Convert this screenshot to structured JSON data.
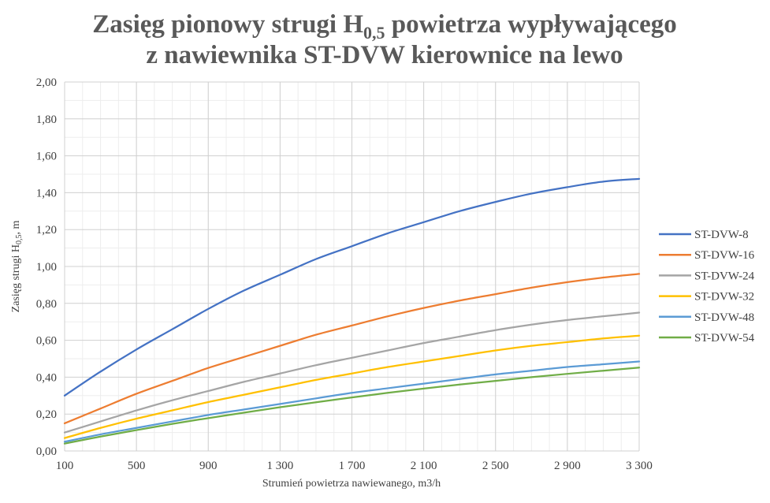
{
  "chart_data": {
    "type": "line",
    "title_line1_pre": "Zasięg pionowy strugi H",
    "title_line1_sub": "0,5",
    "title_line1_post": " powietrza wypływającego",
    "title_line2": "z nawiewnika  ST-DVW kierownice na lewo",
    "xlabel": "Strumień  powietrza nawiewanego,  m3/h",
    "ylabel_pre": "Zasięg  strugi  H",
    "ylabel_sub": "0,5",
    "ylabel_post": ", m",
    "xlim": [
      100,
      3300
    ],
    "ylim": [
      0,
      2
    ],
    "x_ticks": [
      100,
      500,
      900,
      1300,
      1700,
      2100,
      2500,
      2900,
      3300
    ],
    "x_tick_labels": [
      "100",
      "500",
      "900",
      "1 300",
      "1 700",
      "2 100",
      "2 500",
      "2 900",
      "3 300"
    ],
    "y_ticks": [
      0,
      0.2,
      0.4,
      0.6,
      0.8,
      1.0,
      1.2,
      1.4,
      1.6,
      1.8,
      2.0
    ],
    "y_tick_labels": [
      "0,00",
      "0,20",
      "0,40",
      "0,60",
      "0,80",
      "1,00",
      "1,20",
      "1,40",
      "1,60",
      "1,80",
      "2,00"
    ],
    "minor_x_step": 100,
    "grid": true,
    "legend_position": "right",
    "x": [
      100,
      300,
      500,
      700,
      900,
      1100,
      1300,
      1500,
      1700,
      1900,
      2100,
      2300,
      2500,
      2700,
      2900,
      3100,
      3300
    ],
    "series": [
      {
        "name": "ST-DVW-8",
        "color": "#4472C4",
        "values": [
          0.3,
          0.43,
          0.55,
          0.66,
          0.77,
          0.87,
          0.955,
          1.04,
          1.11,
          1.18,
          1.24,
          1.3,
          1.35,
          1.395,
          1.43,
          1.46,
          1.475
        ]
      },
      {
        "name": "ST-DVW-16",
        "color": "#ED7D31",
        "values": [
          0.15,
          0.23,
          0.31,
          0.38,
          0.45,
          0.51,
          0.57,
          0.63,
          0.68,
          0.73,
          0.775,
          0.815,
          0.85,
          0.885,
          0.915,
          0.94,
          0.96
        ]
      },
      {
        "name": "ST-DVW-24",
        "color": "#A5A5A5",
        "values": [
          0.1,
          0.16,
          0.22,
          0.275,
          0.325,
          0.375,
          0.42,
          0.465,
          0.505,
          0.545,
          0.585,
          0.62,
          0.655,
          0.685,
          0.71,
          0.73,
          0.75
        ]
      },
      {
        "name": "ST-DVW-32",
        "color": "#FFC000",
        "values": [
          0.07,
          0.125,
          0.175,
          0.22,
          0.265,
          0.305,
          0.345,
          0.385,
          0.42,
          0.455,
          0.485,
          0.515,
          0.545,
          0.57,
          0.59,
          0.61,
          0.625
        ]
      },
      {
        "name": "ST-DVW-48",
        "color": "#5B9BD5",
        "values": [
          0.05,
          0.09,
          0.125,
          0.16,
          0.195,
          0.225,
          0.255,
          0.285,
          0.315,
          0.34,
          0.365,
          0.39,
          0.415,
          0.435,
          0.455,
          0.47,
          0.485
        ]
      },
      {
        "name": "ST-DVW-54",
        "color": "#70AD47",
        "values": [
          0.04,
          0.078,
          0.113,
          0.147,
          0.178,
          0.208,
          0.237,
          0.264,
          0.29,
          0.315,
          0.338,
          0.36,
          0.38,
          0.4,
          0.418,
          0.435,
          0.452
        ]
      }
    ]
  }
}
